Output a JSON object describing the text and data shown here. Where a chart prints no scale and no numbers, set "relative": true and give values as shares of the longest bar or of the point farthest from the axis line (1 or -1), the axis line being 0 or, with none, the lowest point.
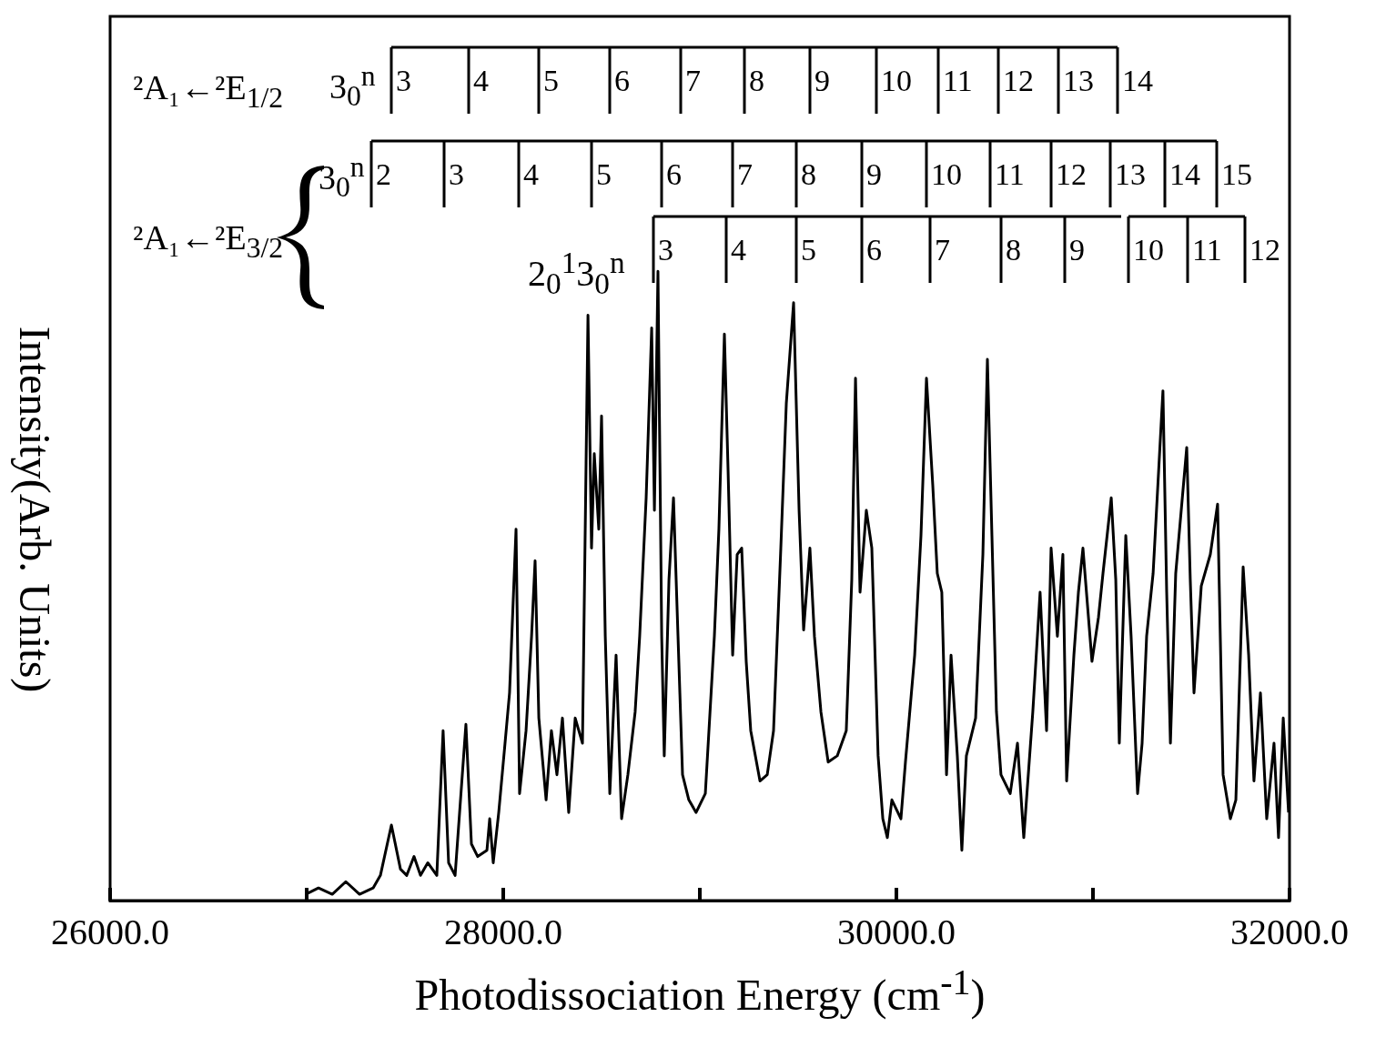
{
  "chart_data": {
    "type": "line",
    "relative": true,
    "color": "#000000",
    "xlabel": "Photodissociation Energy (cm$^{-1}$)",
    "ylabel": "Intensity(Arb. Units)",
    "xlim": [
      26000,
      32000
    ],
    "xticks": [
      {
        "value": 26000,
        "label": "26000.0"
      },
      {
        "value": 27000,
        "label": null
      },
      {
        "value": 28000,
        "label": "28000.0"
      },
      {
        "value": 29000,
        "label": null
      },
      {
        "value": 30000,
        "label": "30000.0"
      },
      {
        "value": 31000,
        "label": null
      },
      {
        "value": 32000,
        "label": "32000.0"
      }
    ],
    "grid": false,
    "marker": "none",
    "line_style": "solid",
    "x": [
      26995,
      27060,
      27130,
      27199,
      27269,
      27338,
      27375,
      27431,
      27477,
      27509,
      27546,
      27579,
      27616,
      27662,
      27694,
      27722,
      27755,
      27810,
      27838,
      27870,
      27917,
      27931,
      27949,
      27977,
      28009,
      28032,
      28065,
      28083,
      28116,
      28144,
      28162,
      28181,
      28218,
      28245,
      28273,
      28301,
      28333,
      28366,
      28403,
      28431,
      28449,
      28463,
      28486,
      28500,
      28519,
      28542,
      28574,
      28602,
      28634,
      28671,
      28694,
      28727,
      28755,
      28769,
      28787,
      28806,
      28819,
      28843,
      28866,
      28889,
      28912,
      28944,
      28981,
      29028,
      29074,
      29097,
      29125,
      29144,
      29167,
      29190,
      29213,
      29236,
      29259,
      29306,
      29343,
      29375,
      29412,
      29440,
      29477,
      29505,
      29528,
      29560,
      29583,
      29616,
      29653,
      29699,
      29745,
      29773,
      29792,
      29815,
      29847,
      29875,
      29907,
      29931,
      29954,
      29977,
      30023,
      30046,
      30093,
      30125,
      30153,
      30185,
      30208,
      30231,
      30255,
      30278,
      30310,
      30333,
      30356,
      30403,
      30440,
      30463,
      30486,
      30509,
      30532,
      30579,
      30616,
      30648,
      30694,
      30731,
      30764,
      30787,
      30819,
      30847,
      30866,
      30903,
      30926,
      30949,
      30995,
      31028,
      31051,
      31093,
      31116,
      31134,
      31167,
      31194,
      31227,
      31250,
      31273,
      31306,
      31356,
      31375,
      31394,
      31421,
      31477,
      31495,
      31514,
      31551,
      31597,
      31634,
      31662,
      31699,
      31727,
      31764,
      31792,
      31819,
      31852,
      31884,
      31921,
      31944,
      31968,
      31995
    ],
    "values": [
      0.01,
      0.02,
      0.01,
      0.03,
      0.01,
      0.02,
      0.04,
      0.12,
      0.05,
      0.04,
      0.07,
      0.04,
      0.06,
      0.04,
      0.27,
      0.06,
      0.04,
      0.28,
      0.09,
      0.07,
      0.08,
      0.13,
      0.06,
      0.14,
      0.25,
      0.33,
      0.59,
      0.17,
      0.27,
      0.42,
      0.54,
      0.29,
      0.16,
      0.27,
      0.2,
      0.29,
      0.14,
      0.29,
      0.25,
      0.93,
      0.56,
      0.71,
      0.59,
      0.77,
      0.42,
      0.17,
      0.39,
      0.13,
      0.2,
      0.3,
      0.42,
      0.64,
      0.91,
      0.62,
      1,
      0.42,
      0.23,
      0.51,
      0.64,
      0.42,
      0.2,
      0.16,
      0.14,
      0.17,
      0.42,
      0.59,
      0.9,
      0.68,
      0.39,
      0.55,
      0.56,
      0.38,
      0.27,
      0.19,
      0.2,
      0.27,
      0.56,
      0.79,
      0.95,
      0.62,
      0.43,
      0.56,
      0.42,
      0.3,
      0.22,
      0.23,
      0.27,
      0.51,
      0.83,
      0.49,
      0.62,
      0.56,
      0.23,
      0.13,
      0.1,
      0.16,
      0.13,
      0.22,
      0.39,
      0.58,
      0.83,
      0.66,
      0.52,
      0.49,
      0.2,
      0.39,
      0.23,
      0.08,
      0.23,
      0.29,
      0.55,
      0.86,
      0.58,
      0.3,
      0.2,
      0.17,
      0.25,
      0.1,
      0.3,
      0.49,
      0.27,
      0.56,
      0.42,
      0.55,
      0.19,
      0.39,
      0.49,
      0.56,
      0.38,
      0.45,
      0.52,
      0.64,
      0.51,
      0.25,
      0.58,
      0.42,
      0.17,
      0.25,
      0.42,
      0.52,
      0.81,
      0.49,
      0.25,
      0.52,
      0.72,
      0.51,
      0.33,
      0.5,
      0.55,
      0.63,
      0.2,
      0.13,
      0.16,
      0.53,
      0.39,
      0.19,
      0.33,
      0.13,
      0.25,
      0.1,
      0.29,
      0.14
    ],
    "annotations": [
      "²A₁←²E$_{1/2}$",
      "3$_{0}$$^{n}$",
      "3$_{0}$$^{n}$",
      "²A₁←²E$_{3/2}$",
      "2$_{0}$$^{1}$3$_{0}$$^{n}$",
      "3",
      "4",
      "5",
      "6",
      "7",
      "8",
      "9",
      "10",
      "11",
      "12",
      "13",
      "14",
      "2",
      "3",
      "4",
      "5",
      "6",
      "7",
      "8",
      "9",
      "10",
      "11",
      "12",
      "13",
      "14",
      "15",
      "3",
      "4",
      "5",
      "6",
      "7",
      "8",
      "9",
      "10",
      "11",
      "12"
    ]
  }
}
